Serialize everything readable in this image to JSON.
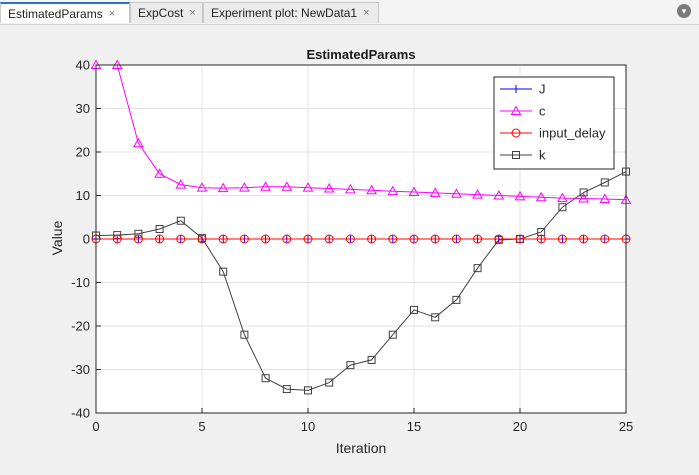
{
  "tabs": [
    {
      "label": "EstimatedParams",
      "close": "×",
      "active": true
    },
    {
      "label": "ExpCost",
      "close": "×",
      "active": false
    },
    {
      "label": "Experiment plot: NewData1",
      "close": "×",
      "active": false
    }
  ],
  "tab_menu_icon": "chevron-down-icon",
  "colors": {
    "J": "#0000ff",
    "c": "#ff00ff",
    "input_delay": "#ff0000",
    "k": "#404040"
  },
  "chart_data": {
    "type": "line",
    "title": "EstimatedParams",
    "xlabel": "Iteration",
    "ylabel": "Value",
    "xlim": [
      0,
      25
    ],
    "ylim": [
      -40,
      40
    ],
    "xticks": [
      0,
      5,
      10,
      15,
      20,
      25
    ],
    "yticks": [
      -40,
      -30,
      -20,
      -10,
      0,
      10,
      20,
      30,
      40
    ],
    "grid": true,
    "legend_position": "top-right",
    "x": [
      0,
      1,
      2,
      3,
      4,
      5,
      6,
      7,
      8,
      9,
      10,
      11,
      12,
      13,
      14,
      15,
      16,
      17,
      18,
      19,
      20,
      21,
      22,
      23,
      24,
      25
    ],
    "series": [
      {
        "name": "J",
        "marker": "plus",
        "values": [
          0,
          0,
          0,
          0,
          0,
          0,
          0,
          0,
          0,
          0,
          0,
          0,
          0,
          0,
          0,
          0,
          0,
          0,
          0,
          0,
          0,
          0,
          0,
          0,
          0,
          0
        ]
      },
      {
        "name": "c",
        "marker": "triangle",
        "values": [
          40,
          40,
          22,
          15,
          12.5,
          11.8,
          11.7,
          11.8,
          12,
          12,
          11.8,
          11.6,
          11.4,
          11.2,
          11,
          10.8,
          10.6,
          10.4,
          10.2,
          10,
          9.8,
          9.6,
          9.4,
          9.3,
          9.2,
          9
        ]
      },
      {
        "name": "input_delay",
        "marker": "circle",
        "values": [
          0,
          0,
          0,
          0,
          0,
          0,
          0,
          0,
          0,
          0,
          0,
          0,
          0,
          0,
          0,
          0,
          0,
          0,
          0,
          0,
          0,
          0,
          0,
          0,
          0,
          0
        ]
      },
      {
        "name": "k",
        "marker": "square",
        "values": [
          0.8,
          0.9,
          1.2,
          2.3,
          4.2,
          0.2,
          -7.5,
          -22,
          -32,
          -34.5,
          -34.8,
          -33,
          -29,
          -27.8,
          -22,
          -16.3,
          -18,
          -14,
          -6.7,
          -0.2,
          0,
          1.6,
          7.3,
          10.7,
          13,
          15.5
        ]
      }
    ]
  }
}
